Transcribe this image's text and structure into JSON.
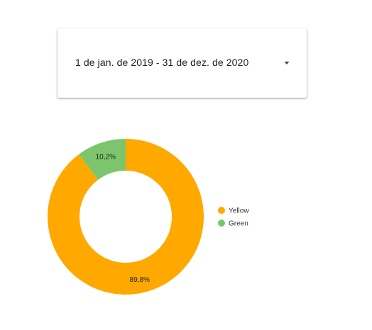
{
  "date_range": {
    "label": "1 de jan. de 2019 - 31 de dez. de 2020",
    "icon": "caret-down-icon"
  },
  "chart_data": {
    "type": "pie",
    "donut": true,
    "categories": [
      "Yellow",
      "Green"
    ],
    "values": [
      89.8,
      10.2
    ],
    "data_labels": [
      "89,8%",
      "10,2%"
    ],
    "colors": [
      "#FFA900",
      "#7CC56C"
    ],
    "legend": {
      "placement": "right",
      "entries": [
        "Yellow",
        "Green"
      ]
    }
  }
}
